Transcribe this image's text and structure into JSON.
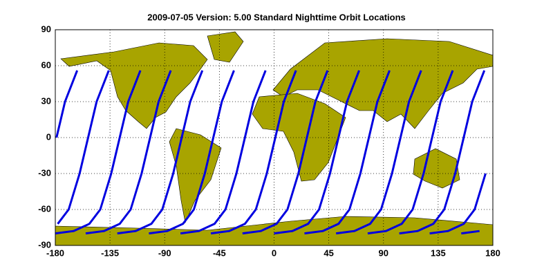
{
  "chart_data": {
    "type": "line",
    "title": "2009-07-05    Version: 5.00  Standard     Nighttime Orbit Locations",
    "xlim": [
      -180,
      180
    ],
    "ylim": [
      -90,
      90
    ],
    "xticks": [
      -180,
      -135,
      -90,
      -45,
      0,
      45,
      90,
      135,
      180
    ],
    "yticks": [
      -90,
      -60,
      -30,
      0,
      30,
      60,
      90
    ],
    "grid": true,
    "color": "#0000e0",
    "series": [
      {
        "x": [
          128,
          143,
          156,
          165,
          174,
          null,
          -179,
          -172,
          -162
        ],
        "values": [
          -80,
          -78,
          -72,
          -60,
          -30,
          null,
          0,
          30,
          56
        ]
      },
      {
        "x": [
          154,
          169,
          null,
          -178,
          -169,
          -160,
          -153,
          -146,
          -136
        ],
        "values": [
          -80,
          -78,
          null,
          -72,
          -60,
          -30,
          0,
          30,
          56
        ]
      },
      {
        "x": [
          -180,
          -165,
          -152,
          -143,
          -134,
          -127,
          -120,
          -110
        ],
        "values": [
          -80,
          -78,
          -72,
          -60,
          -30,
          0,
          30,
          56
        ]
      },
      {
        "x": [
          -155,
          -140,
          -127,
          -118,
          -109,
          -102,
          -95,
          -85
        ],
        "values": [
          -80,
          -78,
          -72,
          -60,
          -30,
          0,
          30,
          56
        ]
      },
      {
        "x": [
          -129,
          -114,
          -101,
          -92,
          -83,
          -76,
          -69,
          -59
        ],
        "values": [
          -80,
          -78,
          -72,
          -60,
          -30,
          0,
          30,
          56
        ]
      },
      {
        "x": [
          -103,
          -88,
          -75,
          -66,
          -57,
          -50,
          -43,
          -33
        ],
        "values": [
          -80,
          -78,
          -72,
          -60,
          -30,
          0,
          30,
          56
        ]
      },
      {
        "x": [
          -77,
          -62,
          -49,
          -40,
          -31,
          -24,
          -17,
          -7
        ],
        "values": [
          -80,
          -78,
          -72,
          -60,
          -30,
          0,
          30,
          56
        ]
      },
      {
        "x": [
          -52,
          -37,
          -24,
          -15,
          -6,
          1,
          8,
          18
        ],
        "values": [
          -80,
          -78,
          -72,
          -60,
          -30,
          0,
          30,
          56
        ]
      },
      {
        "x": [
          -26,
          -11,
          2,
          11,
          20,
          27,
          34,
          44
        ],
        "values": [
          -80,
          -78,
          -72,
          -60,
          -30,
          0,
          30,
          56
        ]
      },
      {
        "x": [
          0,
          15,
          28,
          37,
          46,
          53,
          60,
          70
        ],
        "values": [
          -80,
          -78,
          -72,
          -60,
          -30,
          0,
          30,
          56
        ]
      },
      {
        "x": [
          25,
          40,
          53,
          62,
          71,
          78,
          85,
          95
        ],
        "values": [
          -80,
          -78,
          -72,
          -60,
          -30,
          0,
          30,
          56
        ]
      },
      {
        "x": [
          51,
          66,
          79,
          88,
          97,
          104,
          111,
          121
        ],
        "values": [
          -80,
          -78,
          -72,
          -60,
          -30,
          0,
          30,
          56
        ]
      },
      {
        "x": [
          77,
          92,
          105,
          114,
          123,
          130,
          137,
          147
        ],
        "values": [
          -80,
          -78,
          -72,
          -60,
          -30,
          0,
          30,
          56
        ]
      },
      {
        "x": [
          103,
          118,
          131,
          140,
          149,
          156,
          163,
          173
        ],
        "values": [
          -80,
          -78,
          -72,
          -60,
          -30,
          0,
          30,
          56
        ]
      }
    ]
  }
}
